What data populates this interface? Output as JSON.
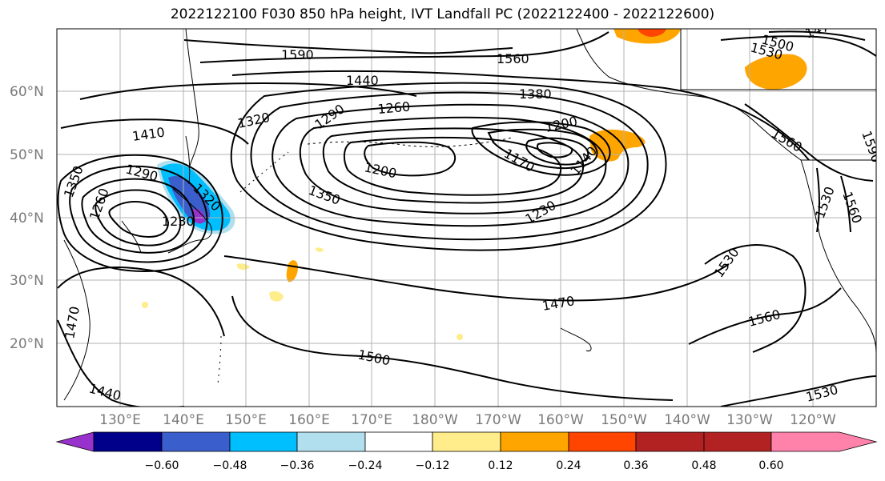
{
  "title": "2022122100 F030 850 hPa height, IVT Landfall PC (2022122400 - 2022122600)",
  "lat_labels": [
    "60°N",
    "50°N",
    "40°N",
    "30°N",
    "20°N"
  ],
  "lon_labels": [
    "130°E",
    "140°E",
    "150°E",
    "160°E",
    "170°E",
    "180°W",
    "170°W",
    "160°W",
    "150°W",
    "140°W",
    "130°W",
    "120°W"
  ],
  "contour_labels": [
    "1590",
    "1560",
    "1440",
    "1380",
    "1500",
    "1470",
    "1530",
    "1410",
    "1320",
    "1290",
    "1260",
    "1200",
    "1200",
    "1170",
    "1140",
    "1350",
    "1350",
    "1290",
    "1230",
    "1230",
    "1260",
    "1320",
    "1560",
    "1530",
    "1560",
    "1590",
    "1530",
    "1470",
    "1560",
    "1500",
    "1440",
    "1470",
    "1530"
  ],
  "colorbar": {
    "colors": [
      "#9932cc",
      "#00008b",
      "#3a5fcd",
      "#00bfff",
      "#b2dfee",
      "#ffffff",
      "#ffec8b",
      "#ffa500",
      "#ff4500",
      "#b22222",
      "#ff82ab"
    ],
    "ticks": [
      "−0.60",
      "−0.48",
      "−0.36",
      "−0.24",
      "−0.12",
      "0.12",
      "0.24",
      "0.36",
      "0.48",
      "0.60"
    ]
  }
}
